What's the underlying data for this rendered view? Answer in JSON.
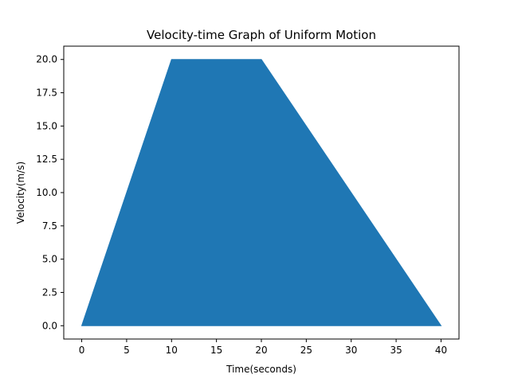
{
  "chart_data": {
    "type": "area",
    "title": "Velocity-time Graph of Uniform Motion",
    "xlabel": "Time(seconds)",
    "ylabel": "Velocity(m/s)",
    "x": [
      0,
      10,
      20,
      40
    ],
    "series": [
      {
        "values": [
          0,
          20,
          20,
          0
        ],
        "color": "#1f77b4"
      }
    ],
    "xlim": [
      -2,
      42
    ],
    "ylim": [
      -1,
      21
    ],
    "xticks": [
      0,
      5,
      10,
      15,
      20,
      25,
      30,
      35,
      40
    ],
    "yticks": [
      0.0,
      2.5,
      5.0,
      7.5,
      10.0,
      12.5,
      15.0,
      17.5,
      20.0
    ],
    "xtick_labels": [
      "0",
      "5",
      "10",
      "15",
      "20",
      "25",
      "30",
      "35",
      "40"
    ],
    "ytick_labels": [
      "0.0",
      "2.5",
      "5.0",
      "7.5",
      "10.0",
      "12.5",
      "15.0",
      "17.5",
      "20.0"
    ],
    "grid": false,
    "legend": false
  }
}
